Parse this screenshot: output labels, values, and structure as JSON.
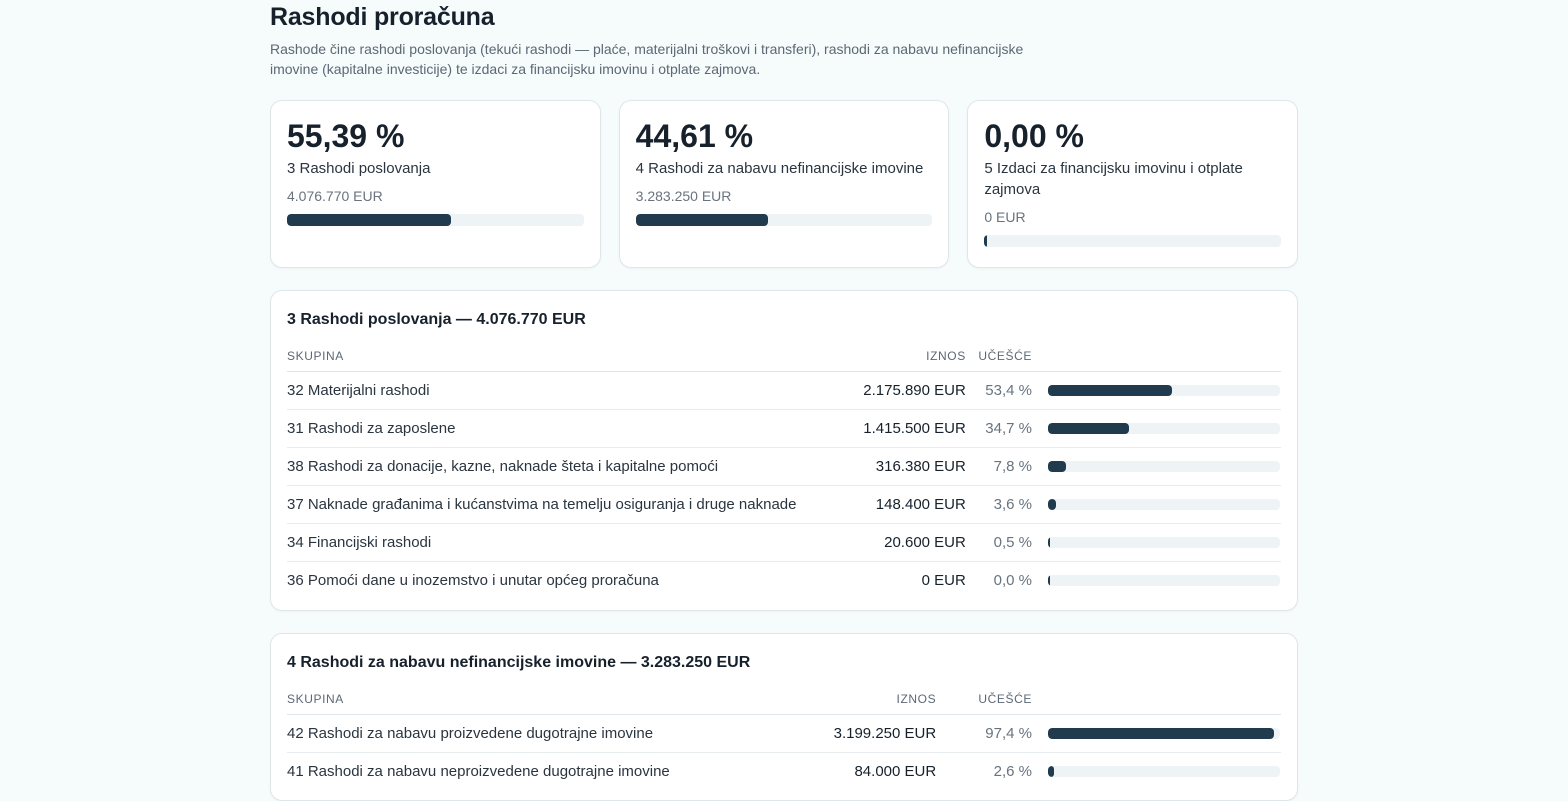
{
  "page": {
    "title": "Rashodi proračuna",
    "intro": "Rashode čine rashodi poslovanja (tekući rashodi — plaće, materijalni troškovi i transferi), rashodi za nabavu nefinancijske imovine (kapitalne investicije) te izdaci za financijsku imovinu i otplate zajmova."
  },
  "cards": [
    {
      "pct": "55,39 %",
      "label": "3 Rashodi poslovanja",
      "amount": "4.076.770 EUR",
      "fraction": 0.5539
    },
    {
      "pct": "44,61 %",
      "label": "4 Rashodi za nabavu nefinancijske imovine",
      "amount": "3.283.250 EUR",
      "fraction": 0.4461
    },
    {
      "pct": "0,00 %",
      "label": "5 Izdaci za financijsku imovinu i otplate zajmova",
      "amount": "0 EUR",
      "fraction": 0.0
    }
  ],
  "sections": [
    {
      "title": "3 Rashodi poslovanja — 4.076.770 EUR",
      "headers": {
        "group": "Skupina",
        "amount": "Iznos",
        "share": "Učešće"
      },
      "rows": [
        {
          "name": "32 Materijalni rashodi",
          "amount": "2.175.890 EUR",
          "share": "53,4 %",
          "fraction": 0.534
        },
        {
          "name": "31 Rashodi za zaposlene",
          "amount": "1.415.500 EUR",
          "share": "34,7 %",
          "fraction": 0.347
        },
        {
          "name": "38 Rashodi za donacije, kazne, naknade šteta i kapitalne pomoći",
          "amount": "316.380 EUR",
          "share": "7,8 %",
          "fraction": 0.078
        },
        {
          "name": "37 Naknade građanima i kućanstvima na temelju osiguranja i druge naknade",
          "amount": "148.400 EUR",
          "share": "3,6 %",
          "fraction": 0.036
        },
        {
          "name": "34 Financijski rashodi",
          "amount": "20.600 EUR",
          "share": "0,5 %",
          "fraction": 0.005
        },
        {
          "name": "36 Pomoći dane u inozemstvo i unutar općeg proračuna",
          "amount": "0 EUR",
          "share": "0,0 %",
          "fraction": 0.0
        }
      ]
    },
    {
      "title": "4 Rashodi za nabavu nefinancijske imovine — 3.283.250 EUR",
      "headers": {
        "group": "Skupina",
        "amount": "Iznos",
        "share": "Učešće"
      },
      "rows": [
        {
          "name": "42 Rashodi za nabavu proizvedene dugotrajne imovine",
          "amount": "3.199.250 EUR",
          "share": "97,4 %",
          "fraction": 0.974
        },
        {
          "name": "41 Rashodi za nabavu neproizvedene dugotrajne imovine",
          "amount": "84.000 EUR",
          "share": "2,6 %",
          "fraction": 0.026
        }
      ]
    }
  ],
  "colors": {
    "bar": "#1f3b4d",
    "track": "#eef3f6"
  }
}
